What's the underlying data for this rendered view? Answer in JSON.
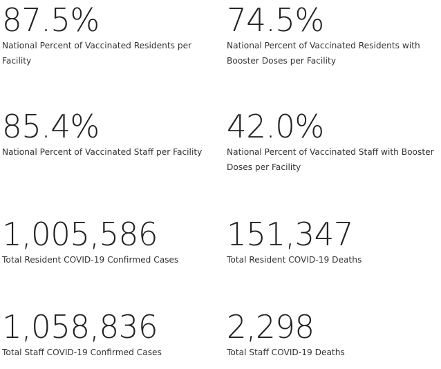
{
  "stats": [
    {
      "value": "87.5%",
      "label": "National Percent of Vaccinated Residents per Facility"
    },
    {
      "value": "74.5%",
      "label": "National Percent of Vaccinated Residents with Booster Doses per Facility"
    },
    {
      "value": "85.4%",
      "label": "National Percent of Vaccinated Staff per Facility"
    },
    {
      "value": "42.0%",
      "label": "National Percent of Vaccinated Staff with Booster Doses per Facility"
    },
    {
      "value": "1,005,586",
      "label": "Total Resident COVID-19 Confirmed Cases"
    },
    {
      "value": "151,347",
      "label": "Total Resident COVID-19 Deaths"
    },
    {
      "value": "1,058,836",
      "label": "Total Staff COVID-19 Confirmed Cases"
    },
    {
      "value": "2,298",
      "label": "Total Staff COVID-19 Deaths"
    }
  ]
}
